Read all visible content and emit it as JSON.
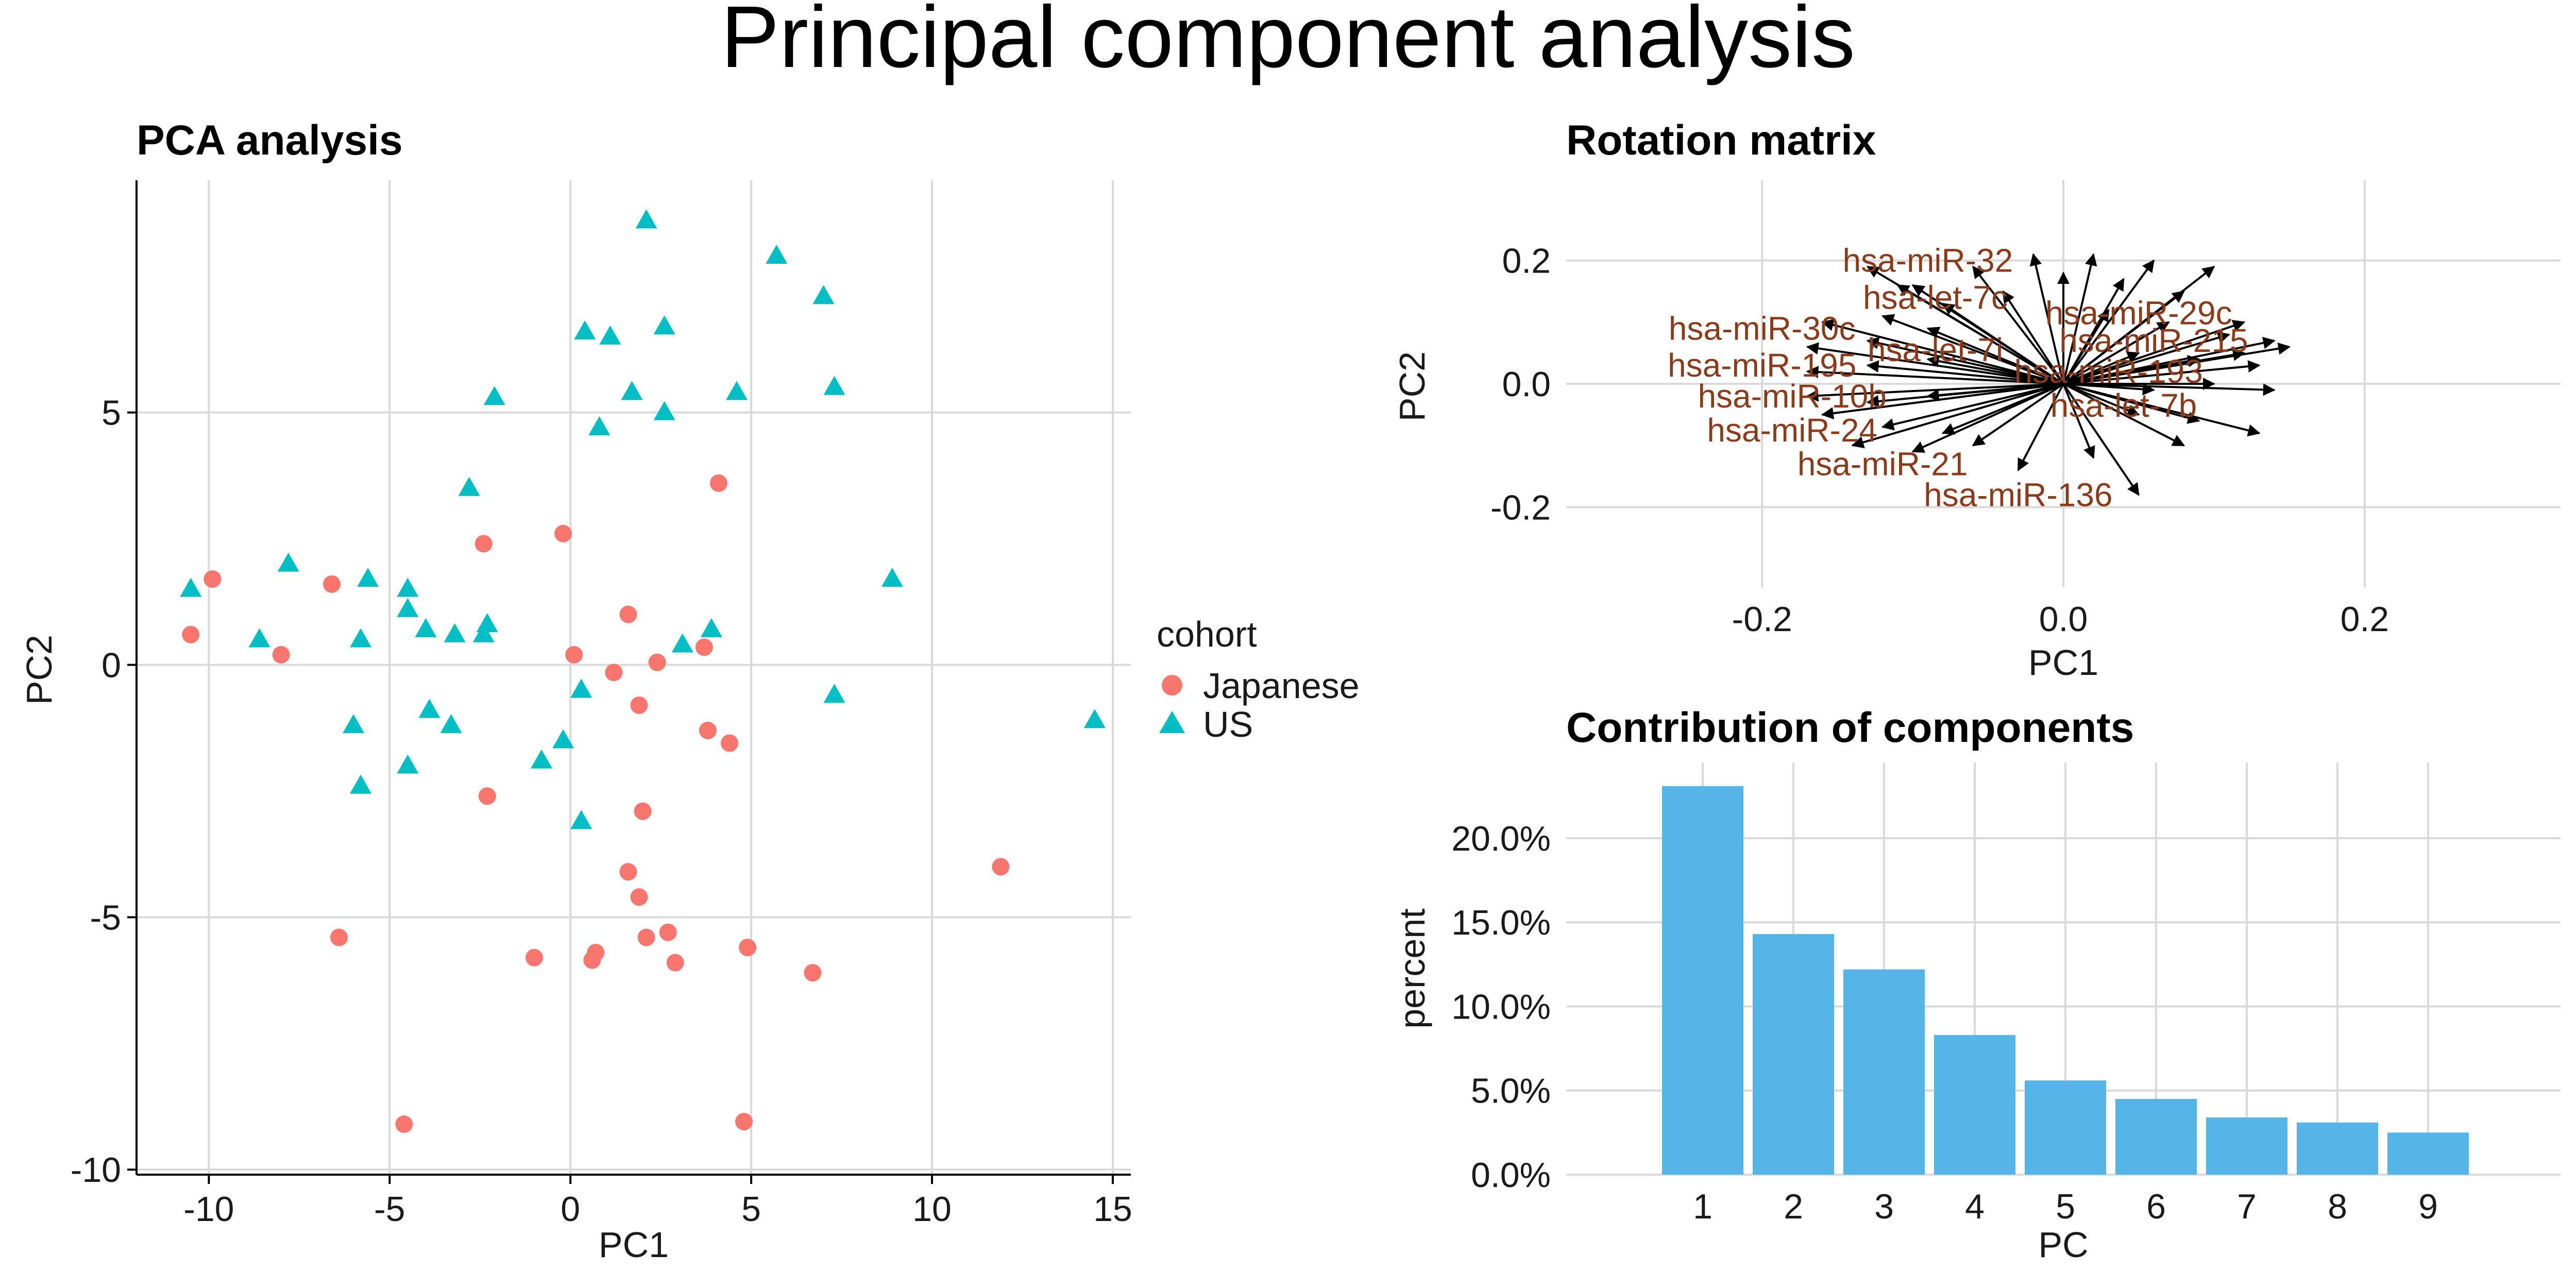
{
  "title": "Principal component analysis",
  "chart_data": [
    {
      "type": "scatter",
      "title": "PCA analysis",
      "xlabel": "PC1",
      "ylabel": "PC2",
      "xlim": [
        -12,
        15.5
      ],
      "ylim": [
        -10.1,
        9.6
      ],
      "xticks": [
        -10,
        -5,
        0,
        5,
        10,
        15
      ],
      "yticks": [
        -10,
        -5,
        0,
        5
      ],
      "grid": true,
      "legend": {
        "title": "cohort",
        "position": "right"
      },
      "series": [
        {
          "name": "Japanese",
          "color": "#F8766D",
          "marker": "circle",
          "points": [
            [
              -10.5,
              0.6
            ],
            [
              -9.9,
              1.7
            ],
            [
              -8,
              0.2
            ],
            [
              -6.6,
              1.6
            ],
            [
              -6.4,
              -5.4
            ],
            [
              -4.6,
              -9.1
            ],
            [
              -2.4,
              2.4
            ],
            [
              -2.3,
              -2.6
            ],
            [
              -0.2,
              2.6
            ],
            [
              -1,
              -5.8
            ],
            [
              0.1,
              0.2
            ],
            [
              0.6,
              -5.85
            ],
            [
              0.7,
              -5.7
            ],
            [
              1.2,
              -0.15
            ],
            [
              1.6,
              1
            ],
            [
              1.6,
              -4.1
            ],
            [
              1.9,
              -0.8
            ],
            [
              1.9,
              -4.6
            ],
            [
              2,
              -2.9
            ],
            [
              2.1,
              -5.4
            ],
            [
              2.4,
              0.05
            ],
            [
              2.7,
              -5.3
            ],
            [
              2.9,
              -5.9
            ],
            [
              3.7,
              0.35
            ],
            [
              3.8,
              -1.3
            ],
            [
              4.1,
              3.6
            ],
            [
              4.4,
              -1.55
            ],
            [
              4.8,
              -9.05
            ],
            [
              4.9,
              -5.6
            ],
            [
              6.7,
              -6.1
            ],
            [
              11.9,
              -4
            ]
          ]
        },
        {
          "name": "US",
          "color": "#00BFC4",
          "marker": "triangle",
          "points": [
            [
              -10.5,
              1.5
            ],
            [
              -8.6,
              0.5
            ],
            [
              -7.8,
              2
            ],
            [
              -5.8,
              0.5
            ],
            [
              -6.0,
              -1.2
            ],
            [
              -5.6,
              1.7
            ],
            [
              -5.8,
              -2.4
            ],
            [
              -4.5,
              1.5
            ],
            [
              -4.5,
              1.1
            ],
            [
              -4.0,
              0.7
            ],
            [
              -3.9,
              -0.9
            ],
            [
              -4.5,
              -2
            ],
            [
              -3.3,
              -1.2
            ],
            [
              -3.2,
              0.6
            ],
            [
              -2.8,
              3.5
            ],
            [
              -2.4,
              0.6
            ],
            [
              -2.3,
              0.8
            ],
            [
              -2.1,
              5.3
            ],
            [
              -0.8,
              -1.9
            ],
            [
              -0.2,
              -1.5
            ],
            [
              0.3,
              -0.5
            ],
            [
              0.3,
              -3.1
            ],
            [
              0.4,
              6.6
            ],
            [
              0.8,
              4.7
            ],
            [
              1.1,
              6.5
            ],
            [
              1.7,
              5.4
            ],
            [
              2.1,
              8.8
            ],
            [
              2.6,
              6.7
            ],
            [
              2.6,
              5
            ],
            [
              3.1,
              0.4
            ],
            [
              3.9,
              0.7
            ],
            [
              4.6,
              5.4
            ],
            [
              5.7,
              8.1
            ],
            [
              7.0,
              7.3
            ],
            [
              7.3,
              5.5
            ],
            [
              7.3,
              -0.6
            ],
            [
              8.9,
              1.7
            ],
            [
              14.5,
              -1.1
            ]
          ]
        }
      ]
    },
    {
      "type": "scatter",
      "title": "Rotation matrix",
      "xlabel": "PC1",
      "ylabel": "PC2",
      "xlim": [
        -0.33,
        0.33
      ],
      "ylim": [
        -0.33,
        0.33
      ],
      "xticks": [
        -0.2,
        0.0,
        0.2
      ],
      "yticks": [
        -0.2,
        0.0,
        0.2
      ],
      "grid": true,
      "arrows": [
        [
          -0.13,
          0.19
        ],
        [
          -0.1,
          0.16
        ],
        [
          -0.06,
          0.19
        ],
        [
          -0.02,
          0.21
        ],
        [
          0.02,
          0.21
        ],
        [
          0.06,
          0.2
        ],
        [
          0.1,
          0.19
        ],
        [
          -0.16,
          0.1
        ],
        [
          -0.12,
          0.11
        ],
        [
          -0.08,
          0.13
        ],
        [
          -0.04,
          0.15
        ],
        [
          0.0,
          0.18
        ],
        [
          0.04,
          0.17
        ],
        [
          0.08,
          0.15
        ],
        [
          0.12,
          0.1
        ],
        [
          -0.17,
          0.06
        ],
        [
          -0.13,
          0.07
        ],
        [
          -0.09,
          0.09
        ],
        [
          0.03,
          0.12
        ],
        [
          0.07,
          0.1
        ],
        [
          0.11,
          0.08
        ],
        [
          0.14,
          0.07
        ],
        [
          -0.17,
          0.02
        ],
        [
          -0.13,
          0.03
        ],
        [
          -0.09,
          0.04
        ],
        [
          0.05,
          0.05
        ],
        [
          0.09,
          0.04
        ],
        [
          0.13,
          0.03
        ],
        [
          0.15,
          0.06
        ],
        [
          -0.17,
          -0.02
        ],
        [
          -0.13,
          -0.03
        ],
        [
          -0.09,
          -0.02
        ],
        [
          0.06,
          -0.01
        ],
        [
          0.1,
          0.0
        ],
        [
          0.14,
          -0.01
        ],
        [
          -0.16,
          -0.05
        ],
        [
          -0.12,
          -0.07
        ],
        [
          -0.08,
          -0.08
        ],
        [
          0.05,
          -0.05
        ],
        [
          0.09,
          -0.06
        ],
        [
          0.13,
          -0.08
        ],
        [
          -0.14,
          -0.1
        ],
        [
          -0.1,
          -0.11
        ],
        [
          -0.06,
          -0.1
        ],
        [
          0.02,
          -0.12
        ],
        [
          0.05,
          -0.18
        ],
        [
          0.08,
          -0.1
        ],
        [
          -0.03,
          -0.14
        ],
        [
          -0.11,
          0.16
        ],
        [
          0.12,
          0.05
        ]
      ],
      "labels": [
        {
          "text": "hsa-miR-32",
          "x": -0.09,
          "y": 0.2
        },
        {
          "text": "hsa-let-7c",
          "x": -0.085,
          "y": 0.14
        },
        {
          "text": "hsa-miR-30c",
          "x": -0.2,
          "y": 0.09
        },
        {
          "text": "hsa-miR-195",
          "x": -0.2,
          "y": 0.03
        },
        {
          "text": "hsa-miR-10b",
          "x": -0.18,
          "y": -0.02
        },
        {
          "text": "hsa-miR-24",
          "x": -0.18,
          "y": -0.075
        },
        {
          "text": "hsa-miR-21",
          "x": -0.12,
          "y": -0.13
        },
        {
          "text": "hsa-miR-136",
          "x": -0.03,
          "y": -0.18
        },
        {
          "text": "hsa-let-7i",
          "x": -0.085,
          "y": 0.055
        },
        {
          "text": "hsa-miR-29c",
          "x": 0.05,
          "y": 0.115
        },
        {
          "text": "hsa-miR-215",
          "x": 0.06,
          "y": 0.07
        },
        {
          "text": "hsa-miR-193",
          "x": 0.03,
          "y": 0.02
        },
        {
          "text": "hsa-let-7b",
          "x": 0.04,
          "y": -0.035
        }
      ]
    },
    {
      "type": "bar",
      "title": "Contribution of components",
      "xlabel": "PC",
      "ylabel": "percent",
      "categories": [
        "1",
        "2",
        "3",
        "4",
        "5",
        "6",
        "7",
        "8",
        "9"
      ],
      "values": [
        23.1,
        14.3,
        12.2,
        8.3,
        5.6,
        4.5,
        3.4,
        3.1,
        2.5
      ],
      "ylim": [
        0,
        24.5
      ],
      "yticks": [
        "0.0%",
        "5.0%",
        "10.0%",
        "15.0%",
        "20.0%"
      ],
      "ytick_values": [
        0,
        5,
        10,
        15,
        20
      ],
      "color": "#56B4E9",
      "grid": true
    }
  ],
  "colors": {
    "label": "#8B3A1A",
    "arrow": "#000000",
    "grid": "#d9d9d9"
  }
}
